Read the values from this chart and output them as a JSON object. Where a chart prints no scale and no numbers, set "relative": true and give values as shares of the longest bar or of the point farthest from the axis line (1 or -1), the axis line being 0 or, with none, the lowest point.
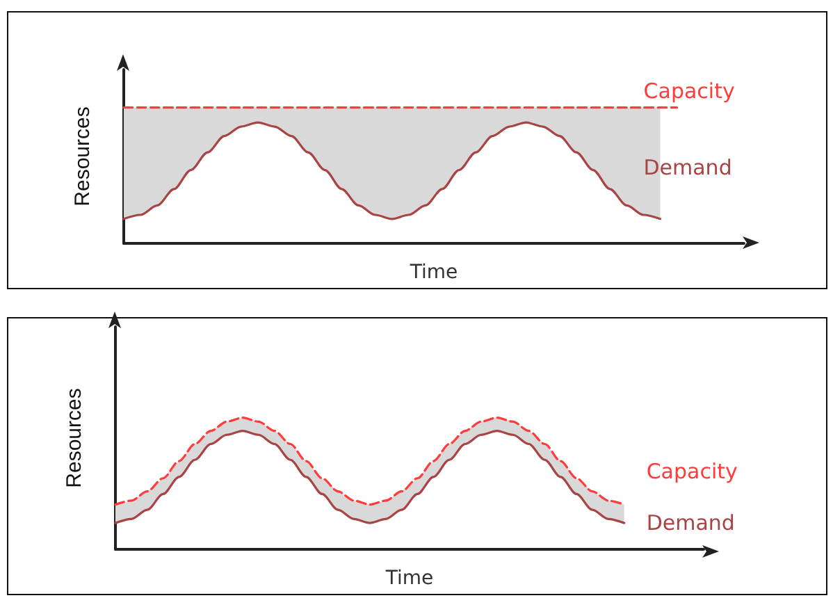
{
  "chart_data": [
    {
      "type": "line",
      "relative": true,
      "xlabel": "Time",
      "ylabel": "Resources",
      "marker": "none",
      "categories": [
        null,
        null,
        null,
        null,
        null,
        null,
        null,
        null,
        null,
        null,
        null,
        null,
        null,
        null,
        null,
        null,
        null,
        null,
        null,
        null,
        null,
        null,
        null,
        null,
        null,
        null,
        null,
        null,
        null,
        null,
        null,
        null,
        null,
        null,
        null,
        null,
        null,
        null
      ],
      "series": [
        {
          "name": "Capacity",
          "color": "#ff3b3b",
          "line_style": "dashed",
          "values": [
            1,
            1,
            1,
            1,
            1,
            1,
            1,
            1,
            1,
            1,
            1,
            1,
            1,
            1,
            1,
            1,
            1,
            1,
            1,
            1,
            1,
            1,
            1,
            1,
            1,
            1,
            1,
            1,
            1,
            1,
            1,
            1,
            1,
            1,
            null,
            null,
            null,
            null
          ]
        },
        {
          "name": "Demand",
          "color": "#a84444",
          "line_style": "solid",
          "values": [
            0.18,
            0.21,
            0.28,
            0.4,
            0.54,
            0.67,
            0.79,
            0.86,
            0.89,
            0.86,
            0.79,
            0.67,
            0.54,
            0.4,
            0.28,
            0.21,
            0.18,
            0.21,
            0.28,
            0.4,
            0.54,
            0.67,
            0.79,
            0.86,
            0.89,
            0.86,
            0.79,
            0.67,
            0.54,
            0.4,
            0.28,
            0.21,
            0.18,
            null,
            null,
            null,
            null,
            null
          ],
          "lower": [
            0.18,
            0.21,
            0.28,
            0.4,
            0.54,
            0.67,
            0.79,
            0.86,
            0.89,
            0.86,
            0.79,
            0.67,
            0.54,
            0.4,
            0.28,
            0.21,
            0.18,
            0.21,
            0.28,
            0.4,
            0.54,
            0.67,
            0.79,
            0.86,
            0.89,
            0.86,
            0.79,
            0.67,
            0.54,
            0.4,
            0.28,
            0.21,
            0.18,
            null,
            null,
            null,
            null,
            null
          ],
          "upper": [
            1,
            1,
            1,
            1,
            1,
            1,
            1,
            1,
            1,
            1,
            1,
            1,
            1,
            1,
            1,
            1,
            1,
            1,
            1,
            1,
            1,
            1,
            1,
            1,
            1,
            1,
            1,
            1,
            1,
            1,
            1,
            1,
            1,
            null,
            null,
            null,
            null,
            null
          ]
        }
      ]
    },
    {
      "type": "line",
      "relative": true,
      "xlabel": "Time",
      "ylabel": "Resources",
      "marker": "none",
      "categories": [
        null,
        null,
        null,
        null,
        null,
        null,
        null,
        null,
        null,
        null,
        null,
        null,
        null,
        null,
        null,
        null,
        null,
        null,
        null,
        null,
        null,
        null,
        null,
        null,
        null,
        null,
        null,
        null,
        null,
        null,
        null,
        null,
        null,
        null,
        null,
        null,
        null,
        null
      ],
      "series": [
        {
          "name": "Capacity",
          "color": "#ff3b3b",
          "line_style": "dashed",
          "values": [
            0.34,
            0.37,
            0.44,
            0.54,
            0.67,
            0.8,
            0.9,
            0.97,
            1.0,
            0.97,
            0.9,
            0.8,
            0.67,
            0.54,
            0.44,
            0.37,
            0.34,
            0.37,
            0.44,
            0.54,
            0.67,
            0.8,
            0.9,
            0.97,
            1.0,
            0.97,
            0.9,
            0.8,
            0.67,
            0.54,
            0.44,
            0.37,
            0.34,
            null,
            null,
            null,
            null,
            null
          ]
        },
        {
          "name": "Demand",
          "color": "#a84444",
          "line_style": "solid",
          "values": [
            0.2,
            0.23,
            0.3,
            0.42,
            0.55,
            0.68,
            0.8,
            0.87,
            0.9,
            0.87,
            0.8,
            0.68,
            0.55,
            0.42,
            0.3,
            0.23,
            0.2,
            0.23,
            0.3,
            0.42,
            0.55,
            0.68,
            0.8,
            0.87,
            0.9,
            0.87,
            0.8,
            0.68,
            0.55,
            0.42,
            0.3,
            0.23,
            0.2,
            null,
            null,
            null,
            null,
            null
          ],
          "lower": [
            0.2,
            0.23,
            0.3,
            0.42,
            0.55,
            0.68,
            0.8,
            0.87,
            0.9,
            0.87,
            0.8,
            0.68,
            0.55,
            0.42,
            0.3,
            0.23,
            0.2,
            0.23,
            0.3,
            0.42,
            0.55,
            0.68,
            0.8,
            0.87,
            0.9,
            0.87,
            0.8,
            0.68,
            0.55,
            0.42,
            0.3,
            0.23,
            0.2,
            null,
            null,
            null,
            null,
            null
          ],
          "upper": [
            0.34,
            0.37,
            0.44,
            0.54,
            0.67,
            0.8,
            0.9,
            0.97,
            1.0,
            0.97,
            0.9,
            0.8,
            0.67,
            0.54,
            0.44,
            0.37,
            0.34,
            0.37,
            0.44,
            0.54,
            0.67,
            0.8,
            0.9,
            0.97,
            1.0,
            0.97,
            0.9,
            0.8,
            0.67,
            0.54,
            0.44,
            0.37,
            0.34,
            null,
            null,
            null,
            null,
            null
          ]
        }
      ]
    }
  ]
}
